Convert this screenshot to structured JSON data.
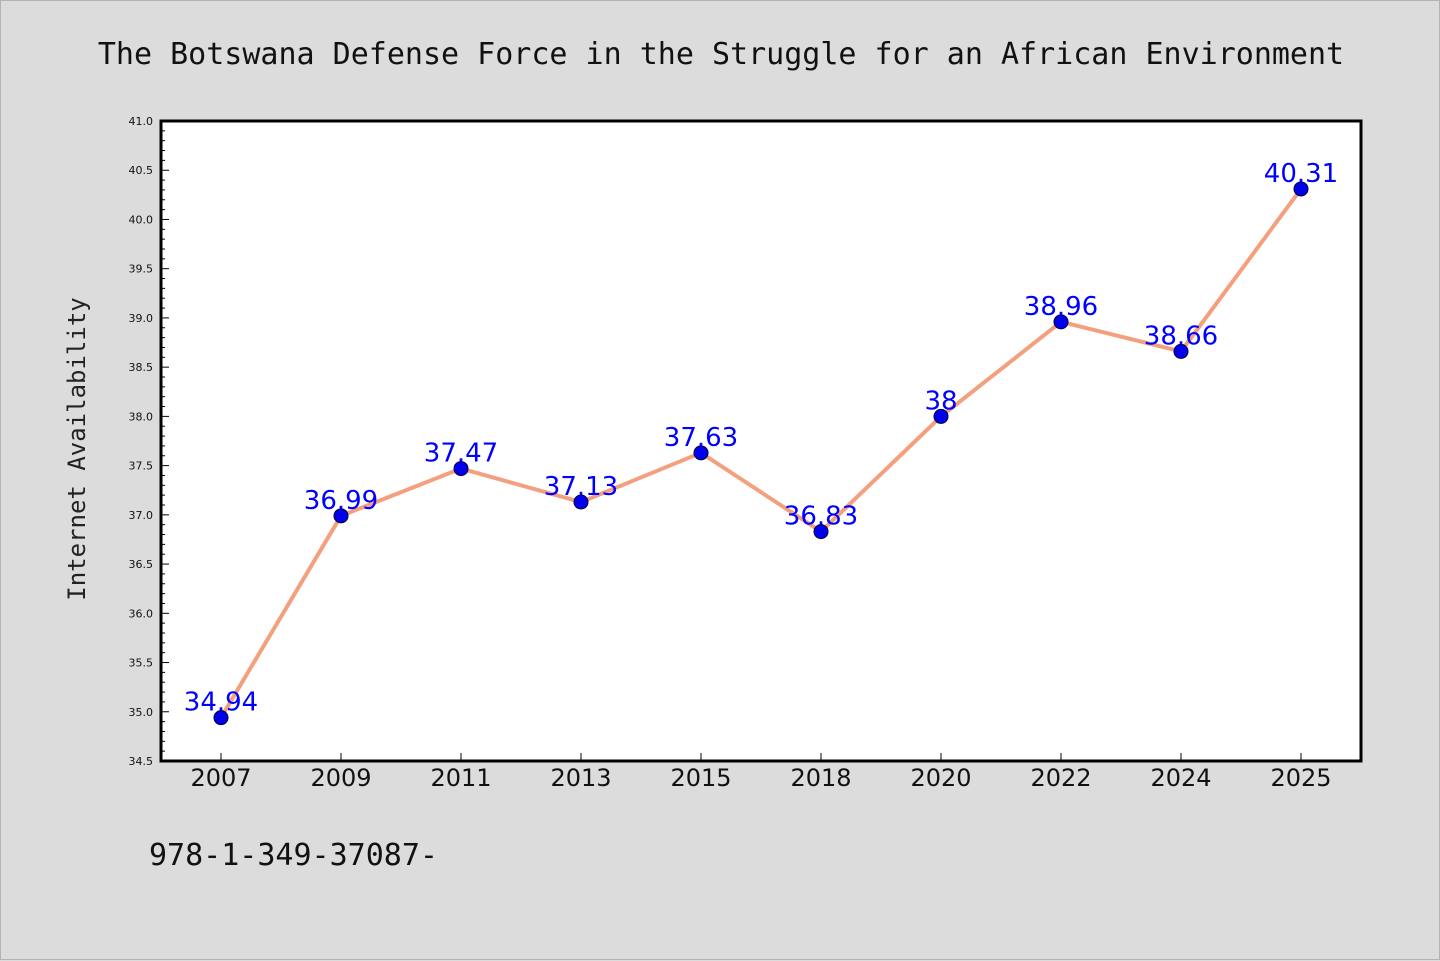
{
  "chart_data": {
    "type": "line",
    "title": "The Botswana Defense Force in the Struggle for an African Environment",
    "ylabel": "Internet Availability",
    "xlabel": "",
    "categories": [
      "2007",
      "2009",
      "2011",
      "2013",
      "2015",
      "2018",
      "2020",
      "2022",
      "2024",
      "2025"
    ],
    "series": [
      {
        "values": [
          34.94,
          36.99,
          37.47,
          37.13,
          37.63,
          36.83,
          38,
          38.96,
          38.66,
          40.31
        ],
        "labels": [
          "34.94",
          "36.99",
          "37.47",
          "37.13",
          "37.63",
          "36.83",
          "38",
          "38.96",
          "38.66",
          "40.31"
        ]
      }
    ],
    "ylim": [
      34.5,
      41.0
    ],
    "yticks": [
      "34.5",
      "35.0",
      "35.5",
      "36.0",
      "36.5",
      "37.0",
      "37.5",
      "38.0",
      "38.5",
      "39.0",
      "39.5",
      "40.0",
      "40.5",
      "41.0"
    ],
    "grid": false,
    "legend": "none",
    "colors": {
      "line": "#f4a07e",
      "marker": "#0000ee",
      "data_label": "#0000ff",
      "plot_bg": "#ffffff",
      "figure_bg": "#dcdcdc"
    }
  },
  "footer": {
    "text": "978-1-349-37087-"
  }
}
